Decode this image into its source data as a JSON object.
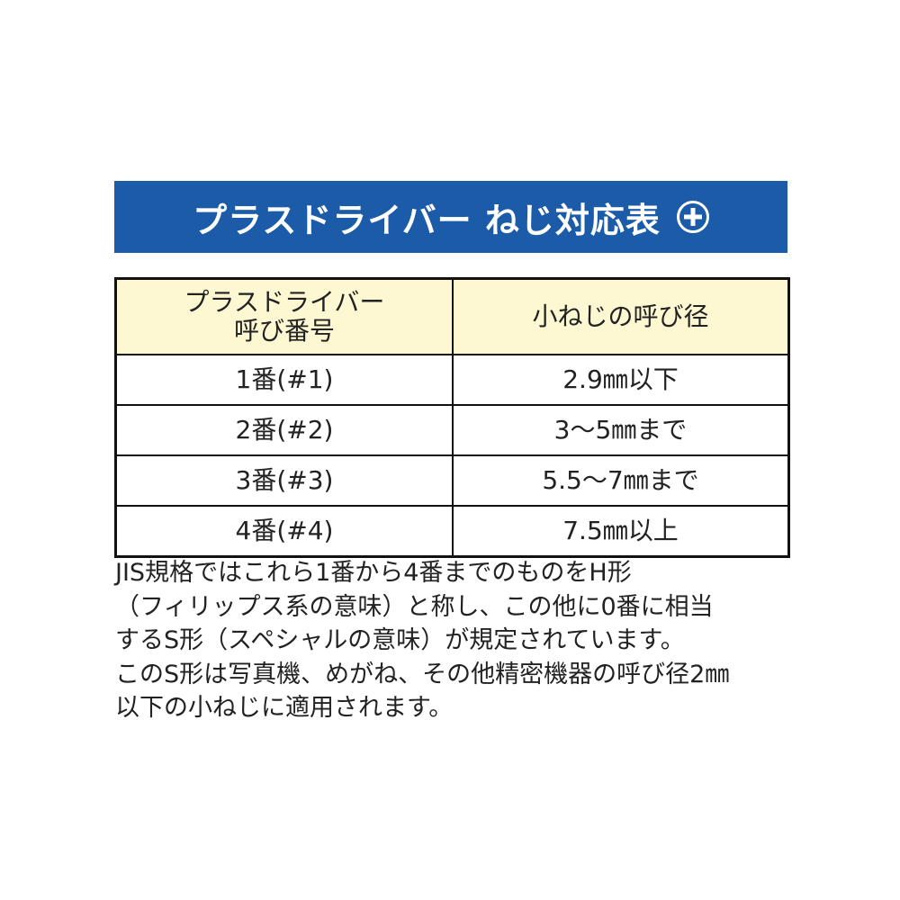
{
  "banner": {
    "title": "プラスドライバー ねじ対応表",
    "icon": "phillips-plus-icon"
  },
  "table": {
    "headers": [
      "プラスドライバー\n呼び番号",
      "小ねじの呼び径"
    ],
    "header_line1": "プラスドライバー",
    "header_line2": "呼び番号",
    "rows": [
      [
        "1番(#1)",
        "2.9㎜以下"
      ],
      [
        "2番(#2)",
        "3〜5㎜まで"
      ],
      [
        "3番(#3)",
        "5.5〜7㎜まで"
      ],
      [
        "4番(#4)",
        "7.5㎜以上"
      ]
    ]
  },
  "note": [
    "JIS規格ではこれら1番から4番までのものをH形",
    "（フィリップス系の意味）と称し、この他に0番に相当",
    "するS形（スペシャルの意味）が規定されています。",
    "このS形は写真機、めがね、その他精密機器の呼び径2㎜",
    "以下の小ねじに適用されます。"
  ],
  "colors": {
    "banner": "#1b5ba8",
    "header_bg": "#fdf8d2"
  }
}
